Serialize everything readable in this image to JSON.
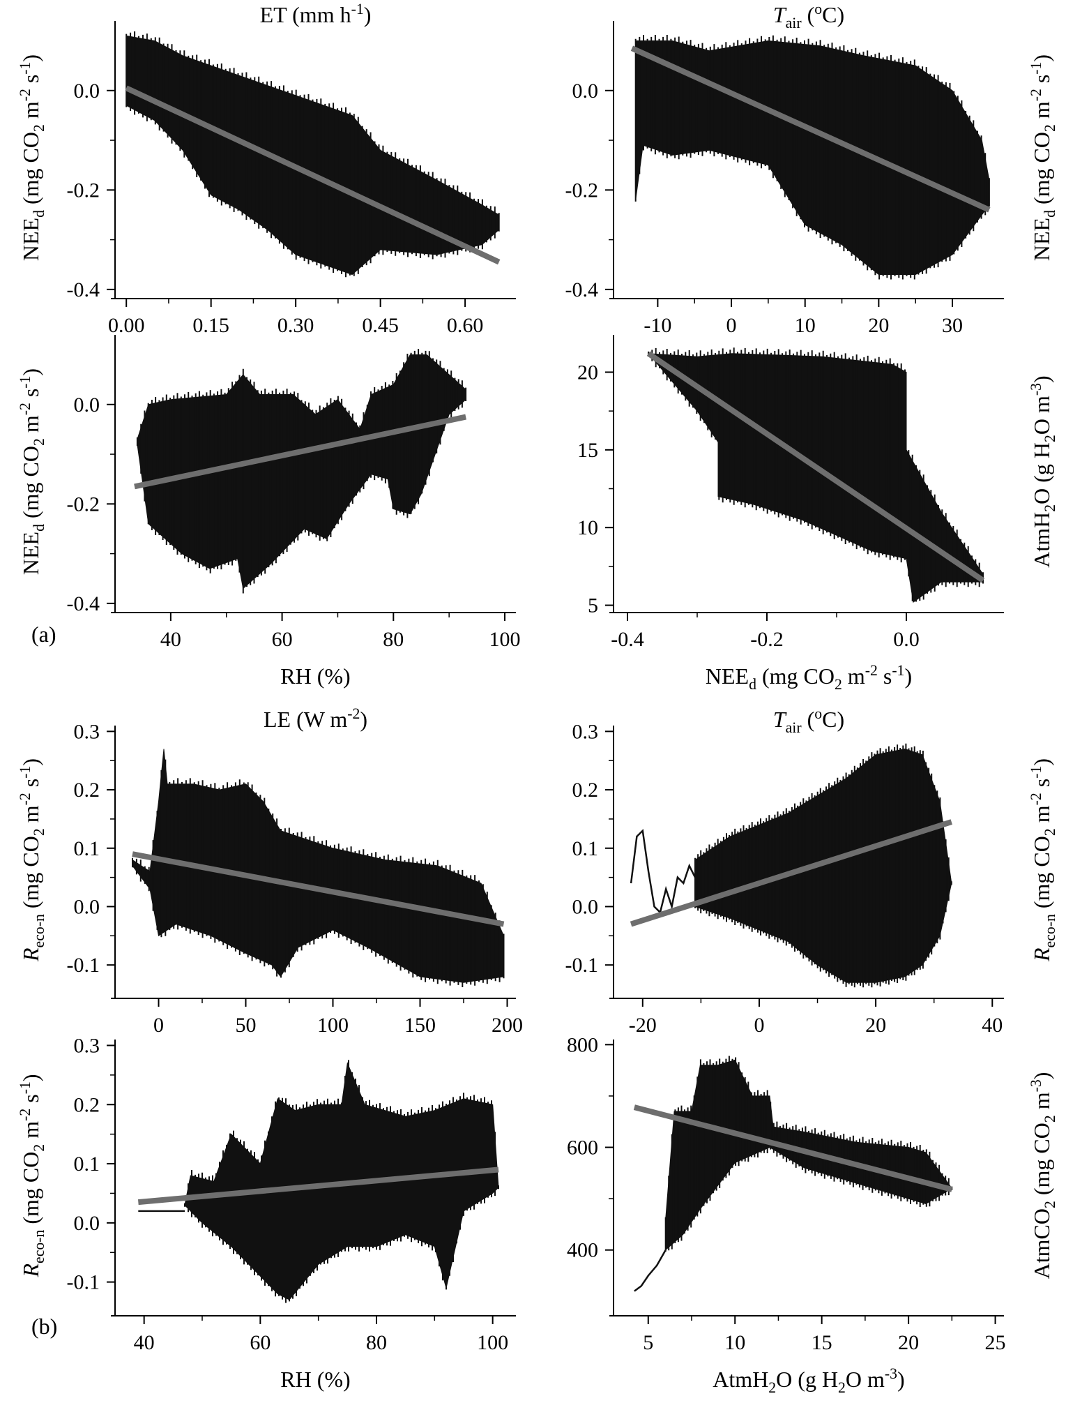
{
  "figure": {
    "panel_labels": [
      "(a)",
      "(b)"
    ]
  },
  "chart_data": [
    {
      "id": "a1",
      "type": "line",
      "top_label": "ET (mm h-1)",
      "xlabel": "",
      "ylabel": "NEEd (mg CO2 m-2 s-1)",
      "xlim": [
        -0.02,
        0.69
      ],
      "ylim": [
        -0.41,
        0.14
      ],
      "xticks": [
        "0.00",
        "0.15",
        "0.30",
        "0.45",
        "0.60"
      ],
      "xtick_values": [
        0.0,
        0.15,
        0.3,
        0.45,
        0.6
      ],
      "yticks": [
        "-0.4",
        "-0.2",
        "0.0"
      ],
      "ytick_values": [
        -0.4,
        -0.2,
        0.0
      ],
      "band_upper": [
        [
          0.0,
          0.11
        ],
        [
          0.05,
          0.1
        ],
        [
          0.1,
          0.07
        ],
        [
          0.2,
          0.03
        ],
        [
          0.3,
          -0.01
        ],
        [
          0.4,
          -0.05
        ],
        [
          0.45,
          -0.12
        ],
        [
          0.55,
          -0.18
        ],
        [
          0.63,
          -0.23
        ],
        [
          0.66,
          -0.25
        ]
      ],
      "band_lower": [
        [
          0.0,
          -0.03
        ],
        [
          0.05,
          -0.06
        ],
        [
          0.1,
          -0.12
        ],
        [
          0.15,
          -0.21
        ],
        [
          0.2,
          -0.24
        ],
        [
          0.25,
          -0.28
        ],
        [
          0.3,
          -0.33
        ],
        [
          0.35,
          -0.35
        ],
        [
          0.4,
          -0.37
        ],
        [
          0.45,
          -0.32
        ],
        [
          0.55,
          -0.33
        ],
        [
          0.63,
          -0.31
        ],
        [
          0.66,
          -0.28
        ]
      ],
      "regression": [
        [
          0.0,
          0.005
        ],
        [
          0.66,
          -0.345
        ]
      ]
    },
    {
      "id": "a2",
      "type": "line",
      "top_label": "Tair (oC)",
      "xlabel": "",
      "ylabel": "NEEd (mg CO2 m-2 s-1)",
      "xlim": [
        -16,
        37
      ],
      "ylim": [
        -0.41,
        0.14
      ],
      "xticks": [
        "-10",
        "0",
        "10",
        "20",
        "30"
      ],
      "xtick_values": [
        -10,
        0,
        10,
        20,
        30
      ],
      "yticks": [
        "-0.4",
        "-0.2",
        "0.0"
      ],
      "ytick_values": [
        -0.4,
        -0.2,
        0.0
      ],
      "band_upper": [
        [
          -13,
          0.1
        ],
        [
          -8,
          0.1
        ],
        [
          -3,
          0.08
        ],
        [
          5,
          0.1
        ],
        [
          12,
          0.09
        ],
        [
          18,
          0.07
        ],
        [
          25,
          0.05
        ],
        [
          30,
          0.0
        ],
        [
          34,
          -0.1
        ],
        [
          35,
          -0.18
        ]
      ],
      "band_lower": [
        [
          -13,
          -0.22
        ],
        [
          -12,
          -0.11
        ],
        [
          -8,
          -0.13
        ],
        [
          -3,
          -0.12
        ],
        [
          5,
          -0.15
        ],
        [
          10,
          -0.27
        ],
        [
          15,
          -0.31
        ],
        [
          20,
          -0.37
        ],
        [
          25,
          -0.37
        ],
        [
          30,
          -0.33
        ],
        [
          35,
          -0.23
        ]
      ],
      "regression": [
        [
          -13.5,
          0.085
        ],
        [
          35,
          -0.24
        ]
      ]
    },
    {
      "id": "a3",
      "type": "line",
      "top_label": "",
      "xlabel": "RH (%)",
      "ylabel": "NEEd (mg CO2 m-2 s-1)",
      "xlim": [
        30,
        102
      ],
      "ylim": [
        -0.41,
        0.14
      ],
      "xticks": [
        "40",
        "60",
        "80",
        "100"
      ],
      "xtick_values": [
        40,
        60,
        80,
        100
      ],
      "yticks": [
        "-0.4",
        "-0.2",
        "0.0"
      ],
      "ytick_values": [
        -0.4,
        -0.2,
        0.0
      ],
      "band_upper": [
        [
          34,
          -0.07
        ],
        [
          36,
          0.0
        ],
        [
          40,
          0.01
        ],
        [
          50,
          0.02
        ],
        [
          53,
          0.06
        ],
        [
          56,
          0.02
        ],
        [
          62,
          0.02
        ],
        [
          66,
          -0.02
        ],
        [
          70,
          0.01
        ],
        [
          74,
          -0.05
        ],
        [
          76,
          0.02
        ],
        [
          80,
          0.04
        ],
        [
          83,
          0.1
        ],
        [
          86,
          0.1
        ],
        [
          90,
          0.06
        ],
        [
          93,
          0.03
        ]
      ],
      "band_lower": [
        [
          34,
          -0.08
        ],
        [
          36,
          -0.24
        ],
        [
          42,
          -0.3
        ],
        [
          47,
          -0.33
        ],
        [
          52,
          -0.31
        ],
        [
          53,
          -0.37
        ],
        [
          58,
          -0.32
        ],
        [
          64,
          -0.25
        ],
        [
          68,
          -0.27
        ],
        [
          72,
          -0.2
        ],
        [
          76,
          -0.14
        ],
        [
          79,
          -0.15
        ],
        [
          80,
          -0.21
        ],
        [
          83,
          -0.22
        ],
        [
          85,
          -0.18
        ],
        [
          90,
          -0.02
        ],
        [
          93,
          0.01
        ]
      ],
      "regression": [
        [
          33.5,
          -0.165
        ],
        [
          93,
          -0.025
        ]
      ]
    },
    {
      "id": "a4",
      "type": "line",
      "top_label": "",
      "xlabel": "NEEd (mg CO2 m-2 s-1)",
      "ylabel": "AtmH2O (g H2O m-3)",
      "xlim": [
        -0.42,
        0.14
      ],
      "ylim": [
        4.8,
        22.4
      ],
      "xticks": [
        "-0.4",
        "-0.2",
        "0.0"
      ],
      "xtick_values": [
        -0.4,
        -0.2,
        0.0
      ],
      "yticks": [
        "5",
        "10",
        "15",
        "20"
      ],
      "ytick_values": [
        5,
        10,
        15,
        20
      ],
      "band_upper": [
        [
          -0.37,
          21.2
        ],
        [
          -0.3,
          21.0
        ],
        [
          -0.25,
          21.2
        ],
        [
          -0.18,
          21.1
        ],
        [
          -0.12,
          21.0
        ],
        [
          -0.08,
          20.8
        ],
        [
          -0.02,
          20.5
        ],
        [
          0.0,
          20.0
        ],
        [
          0.0,
          15.0
        ],
        [
          0.05,
          11.0
        ],
        [
          0.11,
          7.0
        ]
      ],
      "band_lower": [
        [
          -0.37,
          21.2
        ],
        [
          -0.3,
          17.5
        ],
        [
          -0.27,
          15.5
        ],
        [
          -0.27,
          12.0
        ],
        [
          -0.22,
          11.5
        ],
        [
          -0.15,
          10.5
        ],
        [
          -0.1,
          9.5
        ],
        [
          -0.05,
          8.5
        ],
        [
          0.0,
          8.0
        ],
        [
          0.01,
          5.2
        ],
        [
          0.05,
          6.5
        ],
        [
          0.11,
          6.5
        ]
      ],
      "regression": [
        [
          -0.37,
          21.2
        ],
        [
          0.11,
          6.6
        ]
      ]
    },
    {
      "id": "b1",
      "type": "line",
      "top_label": "LE (W m-2)",
      "xlabel": "",
      "ylabel": "Reco-n (mg CO2 m-2 s-1)",
      "xlim": [
        -25,
        205
      ],
      "ylim": [
        -0.15,
        0.31
      ],
      "xticks": [
        "0",
        "50",
        "100",
        "150",
        "200"
      ],
      "xtick_values": [
        0,
        50,
        100,
        150,
        200
      ],
      "yticks": [
        "-0.1",
        "0.0",
        "0.1",
        "0.2",
        "0.3"
      ],
      "ytick_values": [
        -0.1,
        0.0,
        0.1,
        0.2,
        0.3
      ],
      "band_upper": [
        [
          -15,
          0.08
        ],
        [
          -5,
          0.06
        ],
        [
          0,
          0.18
        ],
        [
          3,
          0.27
        ],
        [
          5,
          0.21
        ],
        [
          20,
          0.21
        ],
        [
          35,
          0.2
        ],
        [
          50,
          0.21
        ],
        [
          60,
          0.18
        ],
        [
          70,
          0.13
        ],
        [
          100,
          0.1
        ],
        [
          130,
          0.08
        ],
        [
          160,
          0.07
        ],
        [
          185,
          0.04
        ],
        [
          198,
          -0.05
        ]
      ],
      "band_lower": [
        [
          -15,
          0.07
        ],
        [
          -5,
          0.03
        ],
        [
          0,
          -0.05
        ],
        [
          10,
          -0.03
        ],
        [
          30,
          -0.05
        ],
        [
          50,
          -0.08
        ],
        [
          65,
          -0.1
        ],
        [
          70,
          -0.12
        ],
        [
          80,
          -0.07
        ],
        [
          100,
          -0.04
        ],
        [
          120,
          -0.07
        ],
        [
          150,
          -0.12
        ],
        [
          175,
          -0.13
        ],
        [
          198,
          -0.12
        ]
      ],
      "regression": [
        [
          -15,
          0.09
        ],
        [
          198,
          -0.03
        ]
      ]
    },
    {
      "id": "b2",
      "type": "line",
      "top_label": "Tair (oC)",
      "xlabel": "",
      "ylabel": "Reco-n (mg CO2 m-2 s-1)",
      "xlim": [
        -25,
        42
      ],
      "ylim": [
        -0.15,
        0.31
      ],
      "xticks": [
        "-20",
        "0",
        "20",
        "40"
      ],
      "xtick_values": [
        -20,
        0,
        20,
        40
      ],
      "yticks": [
        "-0.1",
        "0.0",
        "0.1",
        "0.2",
        "0.3"
      ],
      "ytick_values": [
        -0.1,
        0.0,
        0.1,
        0.2,
        0.3
      ],
      "band_upper": [
        [
          -11,
          0.08
        ],
        [
          -5,
          0.12
        ],
        [
          0,
          0.14
        ],
        [
          5,
          0.16
        ],
        [
          10,
          0.19
        ],
        [
          15,
          0.22
        ],
        [
          20,
          0.26
        ],
        [
          25,
          0.27
        ],
        [
          28,
          0.26
        ],
        [
          31,
          0.18
        ],
        [
          33,
          0.04
        ]
      ],
      "band_lower": [
        [
          -11,
          0.0
        ],
        [
          -5,
          -0.02
        ],
        [
          0,
          -0.04
        ],
        [
          5,
          -0.06
        ],
        [
          10,
          -0.1
        ],
        [
          15,
          -0.13
        ],
        [
          20,
          -0.13
        ],
        [
          25,
          -0.12
        ],
        [
          28,
          -0.1
        ],
        [
          31,
          -0.05
        ],
        [
          33,
          0.04
        ]
      ],
      "line_points": [
        [
          -22,
          0.04
        ],
        [
          -21,
          0.12
        ],
        [
          -20,
          0.13
        ],
        [
          -19,
          0.06
        ],
        [
          -18,
          0.0
        ],
        [
          -17,
          -0.01
        ],
        [
          -16,
          0.03
        ],
        [
          -15,
          0.0
        ],
        [
          -14,
          0.05
        ],
        [
          -13,
          0.04
        ],
        [
          -12,
          0.07
        ],
        [
          -11,
          0.05
        ]
      ],
      "regression": [
        [
          -22,
          -0.03
        ],
        [
          33,
          0.145
        ]
      ]
    },
    {
      "id": "b3",
      "type": "line",
      "top_label": "",
      "xlabel": "RH (%)",
      "ylabel": "Reco-n (mg CO2 m-2 s-1)",
      "xlim": [
        35,
        104
      ],
      "ylim": [
        -0.15,
        0.31
      ],
      "xticks": [
        "40",
        "60",
        "80",
        "100"
      ],
      "xtick_values": [
        40,
        60,
        80,
        100
      ],
      "yticks": [
        "-0.1",
        "0.0",
        "0.1",
        "0.2",
        "0.3"
      ],
      "ytick_values": [
        -0.1,
        0.0,
        0.1,
        0.2,
        0.3
      ],
      "band_upper": [
        [
          47,
          0.03
        ],
        [
          48,
          0.08
        ],
        [
          52,
          0.07
        ],
        [
          55,
          0.15
        ],
        [
          60,
          0.1
        ],
        [
          63,
          0.21
        ],
        [
          66,
          0.19
        ],
        [
          70,
          0.2
        ],
        [
          74,
          0.2
        ],
        [
          75,
          0.27
        ],
        [
          78,
          0.2
        ],
        [
          85,
          0.18
        ],
        [
          90,
          0.19
        ],
        [
          95,
          0.21
        ],
        [
          100,
          0.2
        ],
        [
          101,
          0.06
        ]
      ],
      "band_lower": [
        [
          47,
          0.03
        ],
        [
          50,
          0.0
        ],
        [
          55,
          -0.04
        ],
        [
          60,
          -0.09
        ],
        [
          63,
          -0.12
        ],
        [
          65,
          -0.13
        ],
        [
          70,
          -0.07
        ],
        [
          75,
          -0.04
        ],
        [
          80,
          -0.04
        ],
        [
          85,
          -0.02
        ],
        [
          90,
          -0.04
        ],
        [
          92,
          -0.11
        ],
        [
          95,
          0.02
        ],
        [
          100,
          0.05
        ],
        [
          101,
          0.06
        ]
      ],
      "line_points": [
        [
          39,
          0.02
        ],
        [
          47,
          0.02
        ]
      ],
      "regression": [
        [
          39,
          0.035
        ],
        [
          101,
          0.09
        ]
      ]
    },
    {
      "id": "b4",
      "type": "line",
      "top_label": "",
      "xlabel": "AtmH2O (g H2O m-3)",
      "ylabel": "AtmCO2 (mg CO2 m-3)",
      "xlim": [
        3,
        25.5
      ],
      "ylim": [
        280,
        810
      ],
      "xticks": [
        "5",
        "10",
        "15",
        "20",
        "25"
      ],
      "xtick_values": [
        5,
        10,
        15,
        20,
        25
      ],
      "yticks": [
        "400",
        "600",
        "800"
      ],
      "ytick_values": [
        400,
        600,
        800
      ],
      "band_upper": [
        [
          6,
          460
        ],
        [
          6.5,
          670
        ],
        [
          7.5,
          670
        ],
        [
          8,
          760
        ],
        [
          9,
          760
        ],
        [
          10,
          770
        ],
        [
          11,
          700
        ],
        [
          12,
          700
        ],
        [
          12.2,
          640
        ],
        [
          14,
          630
        ],
        [
          17,
          610
        ],
        [
          20,
          600
        ],
        [
          21,
          590
        ],
        [
          22.5,
          520
        ]
      ],
      "band_lower": [
        [
          6,
          400
        ],
        [
          7,
          430
        ],
        [
          8,
          480
        ],
        [
          10,
          570
        ],
        [
          12,
          600
        ],
        [
          14,
          560
        ],
        [
          16,
          540
        ],
        [
          18,
          520
        ],
        [
          20,
          500
        ],
        [
          21,
          490
        ],
        [
          22.5,
          520
        ]
      ],
      "line_points": [
        [
          4.2,
          320
        ],
        [
          4.6,
          330
        ],
        [
          5.0,
          350
        ],
        [
          5.5,
          370
        ],
        [
          6.0,
          400
        ]
      ],
      "regression": [
        [
          4.2,
          678
        ],
        [
          22.5,
          518
        ]
      ]
    }
  ]
}
